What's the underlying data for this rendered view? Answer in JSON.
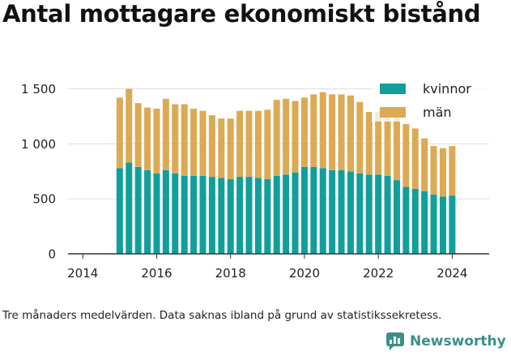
{
  "title": "Antal mottagare ekonomiskt bistånd",
  "caption": "Tre månaders medelvärden. Data saknas ibland på grund av statistikssekretess.",
  "brand": {
    "name": "Newsworthy",
    "logo_icon": "newsworthy-logo-icon"
  },
  "colors": {
    "kvinnor": "#109f9c",
    "man": "#dcaa54",
    "grid": "#dddddd",
    "axis": "#333333"
  },
  "chart_data": {
    "type": "bar",
    "stacked": true,
    "legend_position": "top-right",
    "grid": true,
    "xlim": [
      2013.6,
      2025.0
    ],
    "ylim": [
      0,
      1600
    ],
    "xticks": [
      "2014",
      "2016",
      "2018",
      "2020",
      "2022",
      "2024"
    ],
    "yticks": [
      "0",
      "500",
      "1 000",
      "1 500"
    ],
    "x": [
      2015.0,
      2015.25,
      2015.5,
      2015.75,
      2016.0,
      2016.25,
      2016.5,
      2016.75,
      2017.0,
      2017.25,
      2017.5,
      2017.75,
      2018.0,
      2018.25,
      2018.5,
      2018.75,
      2019.0,
      2019.25,
      2019.5,
      2019.75,
      2020.0,
      2020.25,
      2020.5,
      2020.75,
      2021.0,
      2021.25,
      2021.5,
      2021.75,
      2022.0,
      2022.25,
      2022.5,
      2022.75,
      2023.0,
      2023.25,
      2023.5,
      2023.75,
      2024.0
    ],
    "series": [
      {
        "name": "kvinnor",
        "values": [
          780,
          830,
          790,
          760,
          730,
          760,
          730,
          710,
          710,
          710,
          700,
          690,
          680,
          700,
          700,
          690,
          680,
          710,
          720,
          740,
          790,
          790,
          780,
          760,
          760,
          750,
          730,
          720,
          720,
          710,
          670,
          610,
          590,
          570,
          540,
          520,
          530
        ]
      },
      {
        "name": "män",
        "values": [
          640,
          670,
          580,
          570,
          590,
          650,
          630,
          650,
          610,
          590,
          560,
          540,
          550,
          600,
          600,
          610,
          630,
          690,
          690,
          650,
          630,
          660,
          690,
          690,
          690,
          690,
          650,
          570,
          570,
          590,
          580,
          570,
          550,
          480,
          440,
          440,
          450
        ]
      }
    ]
  }
}
